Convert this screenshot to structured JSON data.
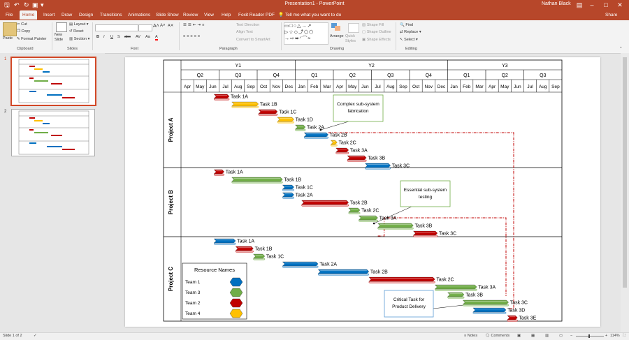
{
  "app": {
    "title": "Presentation1 - PowerPoint",
    "user": "Nathan Black",
    "share": "Share"
  },
  "tabs": [
    "File",
    "Home",
    "Insert",
    "Draw",
    "Design",
    "Transitions",
    "Animations",
    "Slide Show",
    "Review",
    "View",
    "Help",
    "Foxit Reader PDF"
  ],
  "active_tab": "Home",
  "tell_me": "Tell me what you want to do",
  "ribbon": {
    "clipboard": {
      "paste": "Paste",
      "cut": "Cut",
      "copy": "Copy",
      "format_painter": "Format Painter",
      "label": "Clipboard"
    },
    "slides": {
      "new_slide": "New Slide",
      "layout": "Layout",
      "reset": "Reset",
      "section": "Section",
      "label": "Slides"
    },
    "font": {
      "label": "Font",
      "bold": "B",
      "italic": "I",
      "underline": "U",
      "strike": "S",
      "abc": "abc",
      "av": "AV",
      "aa": "Aa",
      "a": "A"
    },
    "paragraph": {
      "text_direction": "Text Direction",
      "align_text": "Align Text",
      "convert": "Convert to SmartArt",
      "label": "Paragraph"
    },
    "drawing": {
      "arrange": "Arrange",
      "quick_styles": "Quick Styles",
      "shape_fill": "Shape Fill",
      "shape_outline": "Shape Outline",
      "shape_effects": "Shape Effects",
      "label": "Drawing"
    },
    "editing": {
      "find": "Find",
      "replace": "Replace",
      "select": "Select",
      "label": "Editing"
    }
  },
  "thumbnails": [
    {
      "num": "1"
    },
    {
      "num": "2"
    }
  ],
  "status": {
    "slide": "Slide 1 of 2",
    "notes": "Notes",
    "comments": "Comments",
    "zoom": "114%"
  },
  "chart_data": {
    "type": "gantt",
    "years": [
      {
        "label": "Y1",
        "start": 0,
        "end": 9
      },
      {
        "label": "Y2",
        "start": 9,
        "end": 21
      },
      {
        "label": "Y3",
        "start": 21,
        "end": 30
      }
    ],
    "quarters": [
      {
        "label": "Q2",
        "start": 0,
        "end": 3
      },
      {
        "label": "Q3",
        "start": 3,
        "end": 6
      },
      {
        "label": "Q4",
        "start": 6,
        "end": 9
      },
      {
        "label": "Q1",
        "start": 9,
        "end": 12
      },
      {
        "label": "Q2",
        "start": 12,
        "end": 15
      },
      {
        "label": "Q3",
        "start": 15,
        "end": 18
      },
      {
        "label": "Q4",
        "start": 18,
        "end": 21
      },
      {
        "label": "Q1",
        "start": 21,
        "end": 24
      },
      {
        "label": "Q2",
        "start": 24,
        "end": 27
      },
      {
        "label": "Q3",
        "start": 27,
        "end": 30
      }
    ],
    "months": [
      "Apr",
      "May",
      "Jun",
      "Jul",
      "Aug",
      "Sep",
      "Oct",
      "Nov",
      "Dec",
      "Jan",
      "Feb",
      "Mar",
      "Apr",
      "May",
      "Jun",
      "Jul",
      "Aug",
      "Sep",
      "Oct",
      "Nov",
      "Dec",
      "Jan",
      "Feb",
      "Mar",
      "Apr",
      "May",
      "Jun",
      "Jul",
      "Aug",
      "Sep"
    ],
    "team_colors": {
      "Team 1": "#0070c0",
      "Team 2": "#c00000",
      "Team 3": "#70ad47",
      "Team 4": "#ffc000"
    },
    "projects": [
      {
        "name": "Project A",
        "tasks": [
          {
            "label": "Task 1A",
            "team": "Team 2",
            "start": 2.6,
            "end": 3.8
          },
          {
            "label": "Task 1B",
            "team": "Team 4",
            "start": 4.0,
            "end": 6.1
          },
          {
            "label": "Task 1C",
            "team": "Team 2",
            "start": 6.1,
            "end": 7.6
          },
          {
            "label": "Task 1D",
            "team": "Team 4",
            "start": 7.6,
            "end": 8.9
          },
          {
            "label": "Task 2A",
            "team": "Team 3",
            "start": 9.0,
            "end": 9.8
          },
          {
            "label": "Task 2B",
            "team": "Team 1",
            "start": 9.7,
            "end": 11.6
          },
          {
            "label": "Task 2C",
            "team": "Team 4",
            "start": 11.8,
            "end": 12.3
          },
          {
            "label": "Task 3A",
            "team": "Team 2",
            "start": 12.2,
            "end": 13.2
          },
          {
            "label": "Task 3B",
            "team": "Team 2",
            "start": 13.1,
            "end": 14.6
          },
          {
            "label": "Task 3C",
            "team": "Team 1",
            "start": 14.5,
            "end": 16.5
          }
        ]
      },
      {
        "name": "Project B",
        "tasks": [
          {
            "label": "Task 1A",
            "team": "Team 2",
            "start": 2.6,
            "end": 3.4
          },
          {
            "label": "Task 1B",
            "team": "Team 3",
            "start": 4.0,
            "end": 8.0
          },
          {
            "label": "Task 1C",
            "team": "Team 1",
            "start": 8.0,
            "end": 8.9
          },
          {
            "label": "Task 2A",
            "team": "Team 1",
            "start": 8.0,
            "end": 8.9
          },
          {
            "label": "Task 2B",
            "team": "Team 2",
            "start": 9.5,
            "end": 13.2
          },
          {
            "label": "Task 2C",
            "team": "Team 3",
            "start": 13.2,
            "end": 14.1
          },
          {
            "label": "Task 3A",
            "team": "Team 3",
            "start": 14.0,
            "end": 15.5
          },
          {
            "label": "Task 3B",
            "team": "Team 3",
            "start": 15.5,
            "end": 18.3
          },
          {
            "label": "Task 3C",
            "team": "Team 2",
            "start": 18.3,
            "end": 20.2
          }
        ]
      },
      {
        "name": "Project C",
        "tasks": [
          {
            "label": "Task 1A",
            "team": "Team 1",
            "start": 2.6,
            "end": 4.3
          },
          {
            "label": "Task 1B",
            "team": "Team 2",
            "start": 4.3,
            "end": 5.7
          },
          {
            "label": "Task 1C",
            "team": "Team 3",
            "start": 5.7,
            "end": 6.6
          },
          {
            "label": "Task 2A",
            "team": "Team 1",
            "start": 8.0,
            "end": 10.8
          },
          {
            "label": "Task 2B",
            "team": "Team 1",
            "start": 10.8,
            "end": 14.8
          },
          {
            "label": "Task 2C",
            "team": "Team 2",
            "start": 14.8,
            "end": 20.0
          },
          {
            "label": "Task 3A",
            "team": "Team 3",
            "start": 20.0,
            "end": 23.3
          },
          {
            "label": "Task 3B",
            "team": "Team 3",
            "start": 21.0,
            "end": 22.3
          },
          {
            "label": "Task 3C",
            "team": "Team 3",
            "start": 22.2,
            "end": 25.8
          },
          {
            "label": "Task 3D",
            "team": "Team 1",
            "start": 23.0,
            "end": 25.6
          },
          {
            "label": "Task 3E",
            "team": "Team 2",
            "start": 25.7,
            "end": 26.5
          }
        ]
      }
    ],
    "legend": {
      "title": "Resource Names",
      "items": [
        "Team 1",
        "Team 3",
        "Team 2",
        "Team 4"
      ]
    },
    "callouts": [
      {
        "text": [
          "Complex sub-system",
          "fabrication"
        ]
      },
      {
        "text": [
          "Essential sub-system",
          "testing"
        ]
      },
      {
        "text": [
          "Critical Task for",
          "Product Delivery"
        ]
      }
    ]
  }
}
